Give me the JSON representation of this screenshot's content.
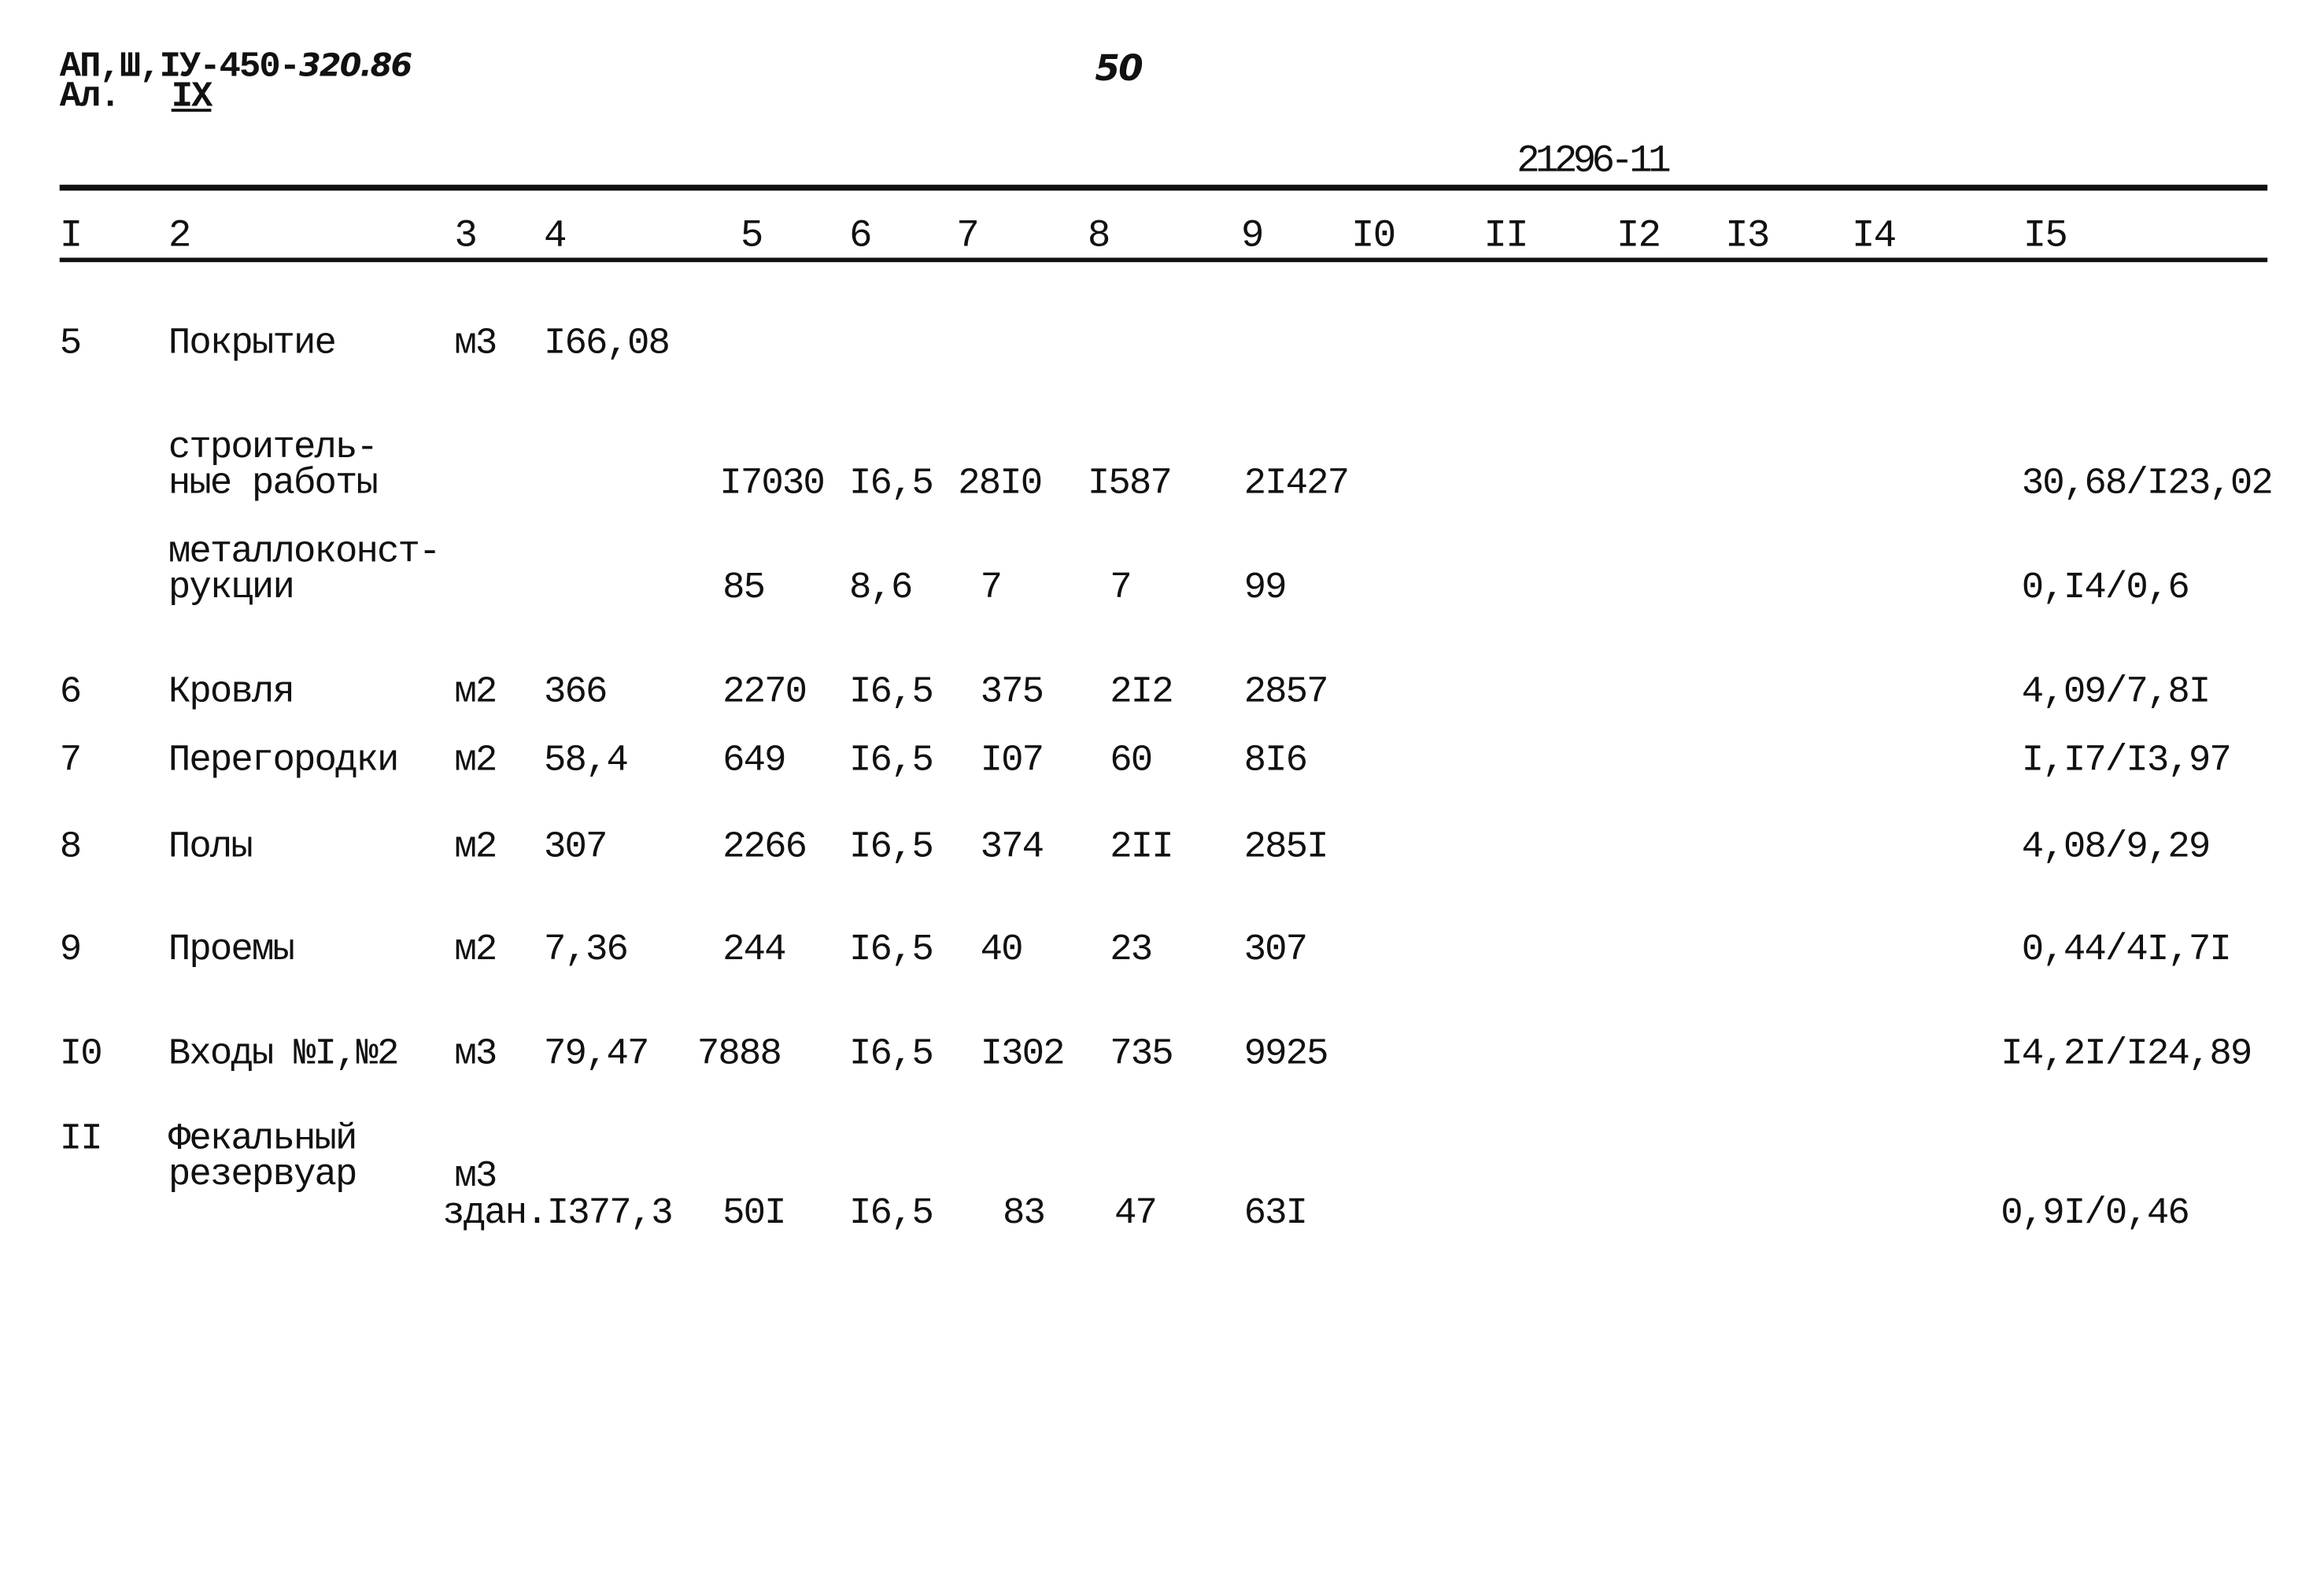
{
  "header": {
    "code_typed": "АП,Ш,IУ-450-",
    "code_handwritten": "320.86",
    "album_label": "Ал.",
    "album_number": "IX",
    "page_number": "50",
    "doc_number": "21296-11"
  },
  "column_numbers": [
    "I",
    "2",
    "3",
    "4",
    "5",
    "6",
    "7",
    "8",
    "9",
    "I0",
    "II",
    "I2",
    "I3",
    "I4",
    "I5"
  ],
  "rows": [
    {
      "n": "5",
      "name": "Покрытие",
      "unit": "м3",
      "qty": "I66,08"
    },
    {
      "name": "строитель-\nные работы",
      "c5": "I7030",
      "c6": "I6,5",
      "c7": "28I0",
      "c8": "I587",
      "c9": "2I427",
      "c15": "30,68/I23,02"
    },
    {
      "name": "металлоконст-\nрукции",
      "c5": "85",
      "c6": "8,6",
      "c7": "7",
      "c8": "7",
      "c9": "99",
      "c15": "0,I4/0,6"
    },
    {
      "n": "6",
      "name": "Кровля",
      "unit": "м2",
      "qty": "366",
      "c5": "2270",
      "c6": "I6,5",
      "c7": "375",
      "c8": "2I2",
      "c9": "2857",
      "c15": "4,09/7,8I"
    },
    {
      "n": "7",
      "name": "Перегородки",
      "unit": "м2",
      "qty": "58,4",
      "c5": "649",
      "c6": "I6,5",
      "c7": "I07",
      "c8": "60",
      "c9": "8I6",
      "c15": "I,I7/I3,97"
    },
    {
      "n": "8",
      "name": "Полы",
      "unit": "м2",
      "qty": "307",
      "c5": "2266",
      "c6": "I6,5",
      "c7": "374",
      "c8": "2II",
      "c9": "285I",
      "c15": "4,08/9,29"
    },
    {
      "n": "9",
      "name": "Проемы",
      "unit": "м2",
      "qty": "7,36",
      "c5": "244",
      "c6": "I6,5",
      "c7": "40",
      "c8": "23",
      "c9": "307",
      "c15": "0,44/4I,7I"
    },
    {
      "n": "I0",
      "name": "Входы №I,№2",
      "unit": "м3",
      "qty": "79,47",
      "c5": "7888",
      "c6": "I6,5",
      "c7": "I302",
      "c8": "735",
      "c9": "9925",
      "c15": "I4,2I/I24,89"
    },
    {
      "n": "II",
      "name": "Фекальный\nрезервуар",
      "unit": "м3",
      "qty": "здан.I377,3",
      "c5": "50I",
      "c6": "I6,5",
      "c7": "83",
      "c8": "47",
      "c9": "63I",
      "c15": "0,9I/0,46"
    }
  ]
}
